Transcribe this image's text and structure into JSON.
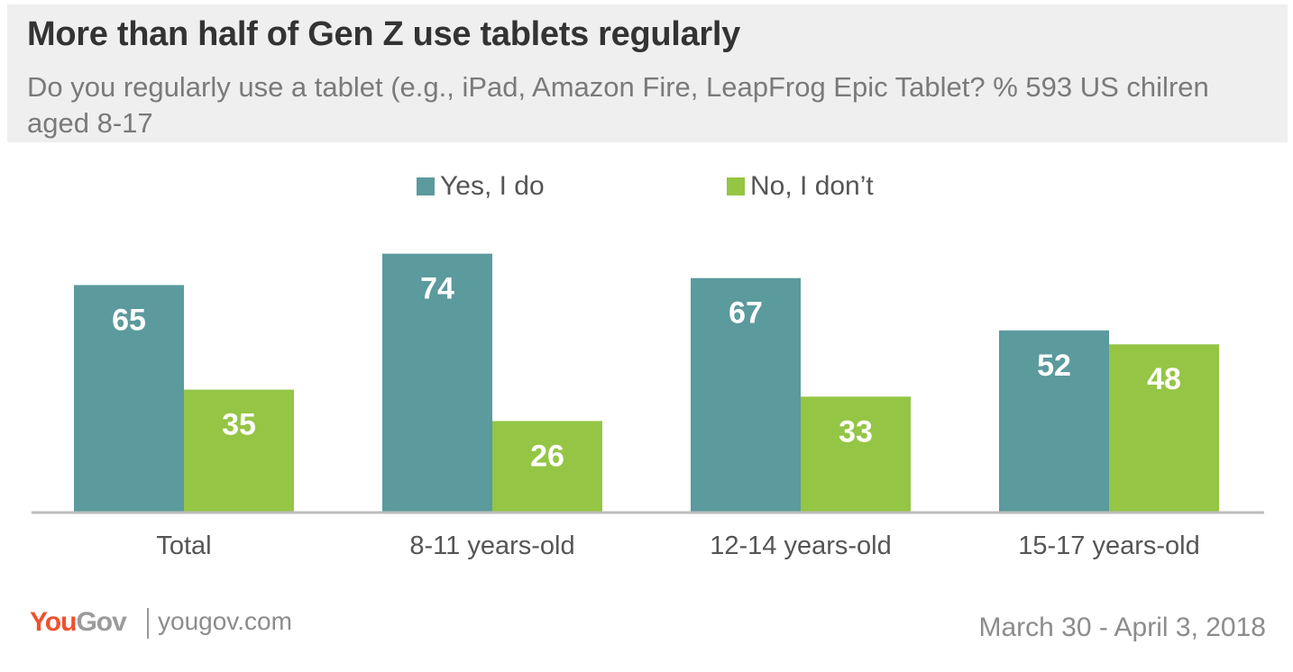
{
  "header": {
    "title": "More than half of Gen Z use tablets regularly",
    "subtitle": "Do you regularly use a tablet (e.g., iPad, Amazon Fire, LeapFrog Epic Tablet? % 593 US chilren aged 8-17"
  },
  "legend": {
    "items": [
      {
        "label": "Yes, I do",
        "color": "#5b9a9d"
      },
      {
        "label": "No, I don’t",
        "color": "#95c544"
      }
    ]
  },
  "chart_data": {
    "type": "bar",
    "title": "More than half of Gen Z use tablets regularly",
    "categories": [
      "Total",
      "8-11 years-old",
      "12-14 years-old",
      "15-17 years-old"
    ],
    "series": [
      {
        "name": "Yes, I do",
        "color": "#5b9a9d",
        "values": [
          65,
          74,
          67,
          52
        ]
      },
      {
        "name": "No, I don’t",
        "color": "#95c544",
        "values": [
          35,
          26,
          33,
          48
        ]
      }
    ],
    "xlabel": "",
    "ylabel": "%",
    "ylim": [
      0,
      100
    ],
    "grid": false,
    "legend_position": "top-center"
  },
  "footer": {
    "logo_you": "You",
    "logo_gov": "Gov",
    "url": "yougov.com",
    "date": "March 30 - April 3, 2018"
  }
}
